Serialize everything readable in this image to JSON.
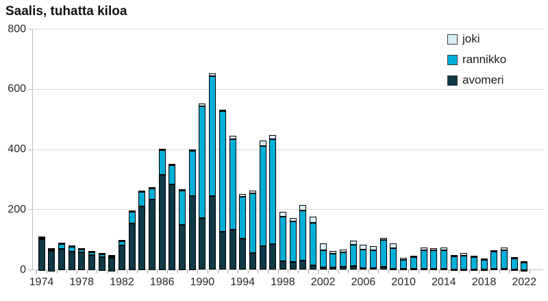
{
  "title": "Saalis, tuhatta kiloa",
  "chart_data": {
    "type": "bar",
    "stacked": true,
    "title": "Saalis, tuhatta kiloa",
    "ylabel": "Saalis, tuhatta kiloa",
    "grid": "horizontal",
    "ylim": [
      0,
      800
    ],
    "yticks": [
      0,
      200,
      400,
      600,
      800
    ],
    "categories": [
      1974,
      1975,
      1976,
      1977,
      1978,
      1979,
      1980,
      1981,
      1982,
      1983,
      1984,
      1985,
      1986,
      1987,
      1988,
      1989,
      1990,
      1991,
      1992,
      1993,
      1994,
      1995,
      1996,
      1997,
      1998,
      1999,
      2000,
      2001,
      2002,
      2003,
      2004,
      2005,
      2006,
      2007,
      2008,
      2009,
      2010,
      2011,
      2012,
      2013,
      2014,
      2015,
      2016,
      2017,
      2018,
      2019,
      2020,
      2021,
      2022
    ],
    "xtick_labels": [
      "1974",
      "1978",
      "1982",
      "1986",
      "1990",
      "1994",
      "1998",
      "2002",
      "2006",
      "2010",
      "2014",
      "2018",
      "2022"
    ],
    "series": [
      {
        "name": "avomeri",
        "color": "#0e3947",
        "values": [
          105,
          68,
          70,
          62,
          60,
          52,
          45,
          47,
          82,
          155,
          212,
          235,
          318,
          284,
          150,
          246,
          172,
          244,
          126,
          133,
          102,
          54,
          78,
          84,
          28,
          24,
          30,
          13,
          8,
          6,
          8,
          12,
          4,
          5,
          8,
          3,
          2,
          2,
          3,
          3,
          3,
          2,
          1,
          1,
          1,
          2,
          2,
          1,
          1
        ]
      },
      {
        "name": "rannikko",
        "color": "#00afd7",
        "values": [
          3,
          1,
          18,
          16,
          8,
          8,
          8,
          1,
          14,
          38,
          48,
          37,
          82,
          64,
          114,
          150,
          370,
          398,
          400,
          300,
          140,
          198,
          332,
          350,
          148,
          136,
          167,
          142,
          57,
          47,
          50,
          70,
          63,
          59,
          90,
          67,
          31,
          38,
          62,
          60,
          61,
          42,
          45,
          40,
          33,
          58,
          63,
          38,
          24
        ]
      },
      {
        "name": "joki",
        "color": "#d9eef7",
        "values": [
          2,
          1,
          2,
          2,
          2,
          1,
          1,
          1,
          2,
          2,
          2,
          2,
          2,
          2,
          2,
          3,
          10,
          10,
          5,
          12,
          9,
          10,
          19,
          12,
          15,
          11,
          18,
          20,
          21,
          9,
          9,
          14,
          15,
          13,
          7,
          17,
          6,
          5,
          8,
          8,
          8,
          3,
          8,
          4,
          3,
          5,
          8,
          3,
          2
        ]
      }
    ],
    "legend": {
      "position": "top-right",
      "order": [
        "joki",
        "rannikko",
        "avomeri"
      ]
    }
  },
  "colors": {
    "background": "#ffffff",
    "gridline": "#d9d9d9",
    "axis": "#bfbfbf",
    "tick": "#a6a6a6",
    "text": "#262626",
    "bar_outline": "#000000"
  }
}
